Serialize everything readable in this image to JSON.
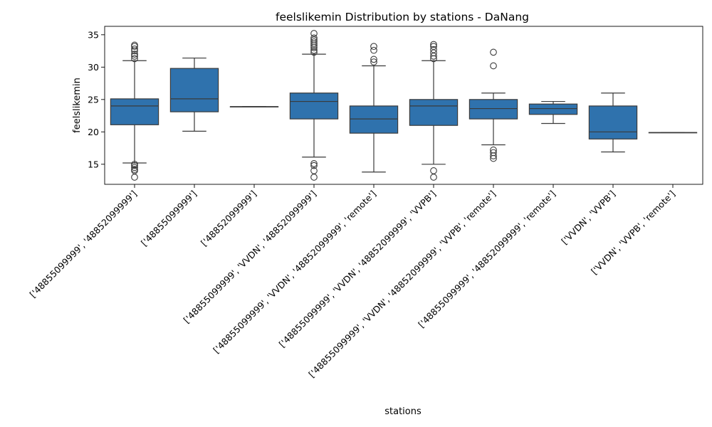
{
  "chart_data": {
    "type": "box",
    "title": "feelslikemin Distribution by stations - DaNang",
    "xlabel": "stations",
    "ylabel": "feelslikemin",
    "ylim": [
      11.9,
      36.3
    ],
    "yticks": [
      15,
      20,
      25,
      30,
      35
    ],
    "box_color": "#2f72ad",
    "line_color": "#3a3a3a",
    "categories": [
      "['48855099999', '48852099999']",
      "['48855099999']",
      "['48852099999']",
      "['48855099999', 'VVDN', '48852099999']",
      "['48855099999', 'VVDN', '48852099999', 'remote']",
      "['48855099999', 'VVDN', '48852099999', 'VVPB']",
      "['48855099999', 'VVDN', '48852099999', 'VVPB', 'remote']",
      "['48855099999', '48852099999', 'remote']",
      "['VVDN', 'VVPB']",
      "['VVDN', 'VVPB', 'remote']"
    ],
    "boxes": [
      {
        "whislo": 15.2,
        "q1": 21.1,
        "med": 24.0,
        "q3": 25.1,
        "whishi": 31.0,
        "fliers": [
          13.0,
          14.0,
          14.2,
          14.5,
          14.8,
          15.0,
          31.3,
          31.7,
          32.0,
          32.5,
          32.8,
          33.2,
          33.4
        ]
      },
      {
        "whislo": 20.1,
        "q1": 23.1,
        "med": 25.1,
        "q3": 29.8,
        "whishi": 31.4,
        "fliers": []
      },
      {
        "whislo": 23.9,
        "q1": 23.9,
        "med": 23.9,
        "q3": 23.9,
        "whishi": 23.9,
        "fliers": []
      },
      {
        "whislo": 16.1,
        "q1": 22.0,
        "med": 24.7,
        "q3": 26.0,
        "whishi": 32.0,
        "fliers": [
          13.0,
          14.0,
          14.8,
          15.1,
          32.3,
          32.6,
          33.0,
          33.3,
          33.6,
          33.9,
          34.2,
          34.5,
          35.2
        ]
      },
      {
        "whislo": 13.8,
        "q1": 19.8,
        "med": 22.0,
        "q3": 24.0,
        "whishi": 30.2,
        "fliers": [
          30.8,
          31.2,
          32.6,
          33.2
        ]
      },
      {
        "whislo": 15.0,
        "q1": 21.0,
        "med": 24.0,
        "q3": 25.0,
        "whishi": 31.0,
        "fliers": [
          13.0,
          14.0,
          31.3,
          31.7,
          32.2,
          32.7,
          33.2,
          33.5
        ]
      },
      {
        "whislo": 18.0,
        "q1": 22.0,
        "med": 23.6,
        "q3": 25.0,
        "whishi": 26.0,
        "fliers": [
          15.9,
          16.3,
          16.8,
          17.2,
          30.2,
          32.3
        ]
      },
      {
        "whislo": 21.3,
        "q1": 22.7,
        "med": 23.6,
        "q3": 24.3,
        "whishi": 24.7,
        "fliers": []
      },
      {
        "whislo": 16.9,
        "q1": 18.9,
        "med": 20.0,
        "q3": 24.0,
        "whishi": 26.0,
        "fliers": []
      },
      {
        "whislo": 19.9,
        "q1": 19.9,
        "med": 19.9,
        "q3": 19.9,
        "whishi": 19.9,
        "fliers": []
      }
    ]
  }
}
